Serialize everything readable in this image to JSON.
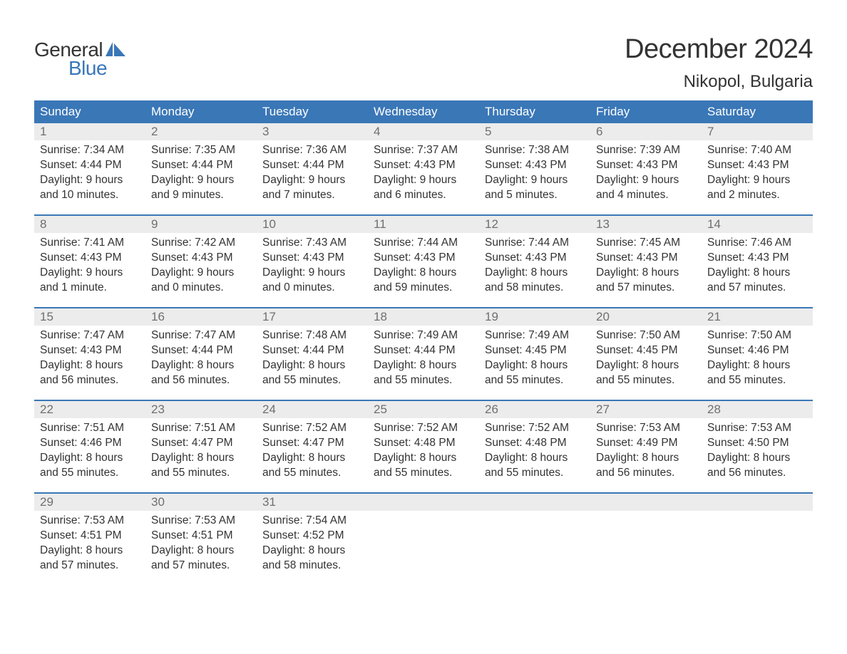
{
  "brand": {
    "word1": "General",
    "word2": "Blue",
    "accent_color": "#3a77b7"
  },
  "title": "December 2024",
  "location": "Nikopol, Bulgaria",
  "colors": {
    "header_bg": "#3a77b7",
    "header_text": "#ffffff",
    "daynum_bg": "#ececec",
    "daynum_text": "#6f6f6f",
    "body_text": "#333333",
    "week_border": "#3a77b7",
    "page_bg": "#ffffff"
  },
  "typography": {
    "title_fontsize": 38,
    "location_fontsize": 24,
    "dow_fontsize": 17,
    "daynum_fontsize": 17,
    "body_fontsize": 15.5
  },
  "days_of_week": [
    "Sunday",
    "Monday",
    "Tuesday",
    "Wednesday",
    "Thursday",
    "Friday",
    "Saturday"
  ],
  "labels": {
    "sunrise": "Sunrise:",
    "sunset": "Sunset:",
    "daylight": "Daylight:"
  },
  "weeks": [
    [
      {
        "n": 1,
        "sunrise": "7:34 AM",
        "sunset": "4:44 PM",
        "daylight": "9 hours and 10 minutes."
      },
      {
        "n": 2,
        "sunrise": "7:35 AM",
        "sunset": "4:44 PM",
        "daylight": "9 hours and 9 minutes."
      },
      {
        "n": 3,
        "sunrise": "7:36 AM",
        "sunset": "4:44 PM",
        "daylight": "9 hours and 7 minutes."
      },
      {
        "n": 4,
        "sunrise": "7:37 AM",
        "sunset": "4:43 PM",
        "daylight": "9 hours and 6 minutes."
      },
      {
        "n": 5,
        "sunrise": "7:38 AM",
        "sunset": "4:43 PM",
        "daylight": "9 hours and 5 minutes."
      },
      {
        "n": 6,
        "sunrise": "7:39 AM",
        "sunset": "4:43 PM",
        "daylight": "9 hours and 4 minutes."
      },
      {
        "n": 7,
        "sunrise": "7:40 AM",
        "sunset": "4:43 PM",
        "daylight": "9 hours and 2 minutes."
      }
    ],
    [
      {
        "n": 8,
        "sunrise": "7:41 AM",
        "sunset": "4:43 PM",
        "daylight": "9 hours and 1 minute."
      },
      {
        "n": 9,
        "sunrise": "7:42 AM",
        "sunset": "4:43 PM",
        "daylight": "9 hours and 0 minutes."
      },
      {
        "n": 10,
        "sunrise": "7:43 AM",
        "sunset": "4:43 PM",
        "daylight": "9 hours and 0 minutes."
      },
      {
        "n": 11,
        "sunrise": "7:44 AM",
        "sunset": "4:43 PM",
        "daylight": "8 hours and 59 minutes."
      },
      {
        "n": 12,
        "sunrise": "7:44 AM",
        "sunset": "4:43 PM",
        "daylight": "8 hours and 58 minutes."
      },
      {
        "n": 13,
        "sunrise": "7:45 AM",
        "sunset": "4:43 PM",
        "daylight": "8 hours and 57 minutes."
      },
      {
        "n": 14,
        "sunrise": "7:46 AM",
        "sunset": "4:43 PM",
        "daylight": "8 hours and 57 minutes."
      }
    ],
    [
      {
        "n": 15,
        "sunrise": "7:47 AM",
        "sunset": "4:43 PM",
        "daylight": "8 hours and 56 minutes."
      },
      {
        "n": 16,
        "sunrise": "7:47 AM",
        "sunset": "4:44 PM",
        "daylight": "8 hours and 56 minutes."
      },
      {
        "n": 17,
        "sunrise": "7:48 AM",
        "sunset": "4:44 PM",
        "daylight": "8 hours and 55 minutes."
      },
      {
        "n": 18,
        "sunrise": "7:49 AM",
        "sunset": "4:44 PM",
        "daylight": "8 hours and 55 minutes."
      },
      {
        "n": 19,
        "sunrise": "7:49 AM",
        "sunset": "4:45 PM",
        "daylight": "8 hours and 55 minutes."
      },
      {
        "n": 20,
        "sunrise": "7:50 AM",
        "sunset": "4:45 PM",
        "daylight": "8 hours and 55 minutes."
      },
      {
        "n": 21,
        "sunrise": "7:50 AM",
        "sunset": "4:46 PM",
        "daylight": "8 hours and 55 minutes."
      }
    ],
    [
      {
        "n": 22,
        "sunrise": "7:51 AM",
        "sunset": "4:46 PM",
        "daylight": "8 hours and 55 minutes."
      },
      {
        "n": 23,
        "sunrise": "7:51 AM",
        "sunset": "4:47 PM",
        "daylight": "8 hours and 55 minutes."
      },
      {
        "n": 24,
        "sunrise": "7:52 AM",
        "sunset": "4:47 PM",
        "daylight": "8 hours and 55 minutes."
      },
      {
        "n": 25,
        "sunrise": "7:52 AM",
        "sunset": "4:48 PM",
        "daylight": "8 hours and 55 minutes."
      },
      {
        "n": 26,
        "sunrise": "7:52 AM",
        "sunset": "4:48 PM",
        "daylight": "8 hours and 55 minutes."
      },
      {
        "n": 27,
        "sunrise": "7:53 AM",
        "sunset": "4:49 PM",
        "daylight": "8 hours and 56 minutes."
      },
      {
        "n": 28,
        "sunrise": "7:53 AM",
        "sunset": "4:50 PM",
        "daylight": "8 hours and 56 minutes."
      }
    ],
    [
      {
        "n": 29,
        "sunrise": "7:53 AM",
        "sunset": "4:51 PM",
        "daylight": "8 hours and 57 minutes."
      },
      {
        "n": 30,
        "sunrise": "7:53 AM",
        "sunset": "4:51 PM",
        "daylight": "8 hours and 57 minutes."
      },
      {
        "n": 31,
        "sunrise": "7:54 AM",
        "sunset": "4:52 PM",
        "daylight": "8 hours and 58 minutes."
      },
      null,
      null,
      null,
      null
    ]
  ]
}
